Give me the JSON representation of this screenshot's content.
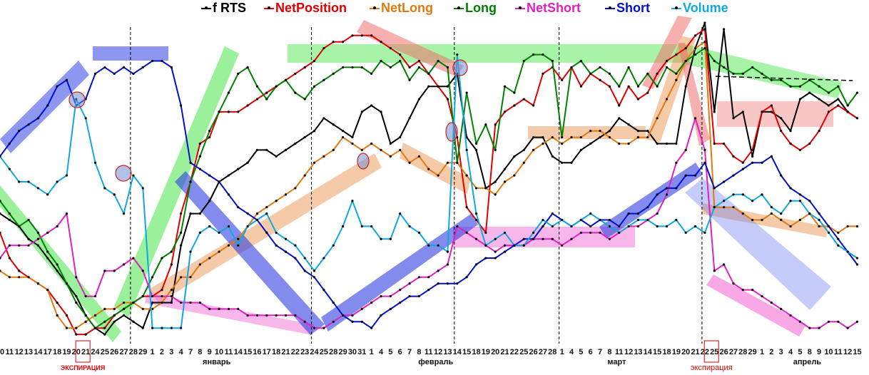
{
  "chart_data": {
    "type": "line",
    "title": "",
    "xlabel": "",
    "ylabel": "",
    "ylim": [
      0,
      100
    ],
    "y_note": "No y-axis shown; values are normalized 0-100 estimates of relative level",
    "grid": false,
    "legend_position": "top",
    "x": [
      "10",
      "11",
      "12",
      "13",
      "14",
      "17",
      "18",
      "19",
      "20",
      "21",
      "24",
      "25",
      "26",
      "27",
      "28",
      "29",
      "1",
      "2",
      "3",
      "4",
      "7",
      "8",
      "9",
      "10",
      "11",
      "14",
      "15",
      "16",
      "17",
      "18",
      "21",
      "22",
      "23",
      "24",
      "25",
      "28",
      "29",
      "30",
      "31",
      "1",
      "4",
      "5",
      "6",
      "7",
      "8",
      "11",
      "12",
      "13",
      "14",
      "15",
      "18",
      "19",
      "20",
      "21",
      "22",
      "25",
      "26",
      "27",
      "28",
      "1",
      "4",
      "5",
      "6",
      "7",
      "8",
      "11",
      "12",
      "13",
      "14",
      "15",
      "18",
      "19",
      "20",
      "21",
      "22",
      "25",
      "26",
      "27",
      "28",
      "29",
      "1",
      "2",
      "3",
      "4",
      "5",
      "8",
      "9",
      "10",
      "11",
      "12",
      "15"
    ],
    "months": [
      {
        "label": "январь",
        "at_index": 22
      },
      {
        "label": "февраль",
        "at_index": 45
      },
      {
        "label": "март",
        "at_index": 64
      },
      {
        "label": "апрель",
        "at_index": 84
      }
    ],
    "expiration_label_1": "ЭКСПИРАЦИЯ",
    "expiration_label_2": "экспирация",
    "expiration_indices": [
      9,
      75
    ],
    "vertical_dashed_indices": [
      14,
      33,
      48,
      59,
      74
    ],
    "series": [
      {
        "name": "f RTS",
        "color": "#000000",
        "values": [
          40,
          38,
          36,
          32,
          30,
          26,
          22,
          18,
          14,
          8,
          4,
          2,
          6,
          8,
          6,
          4,
          12,
          12,
          12,
          30,
          40,
          40,
          44,
          50,
          52,
          54,
          56,
          60,
          60,
          58,
          60,
          62,
          64,
          66,
          70,
          68,
          66,
          64,
          72,
          74,
          72,
          62,
          64,
          70,
          76,
          80,
          80,
          80,
          84,
          64,
          60,
          48,
          50,
          54,
          58,
          60,
          64,
          64,
          58,
          56,
          56,
          60,
          62,
          64,
          66,
          70,
          68,
          66,
          66,
          62,
          62,
          62,
          80,
          92,
          100,
          72,
          98,
          70,
          72,
          58,
          72,
          72,
          70,
          66,
          76,
          78,
          76,
          74,
          76,
          72,
          70
        ]
      },
      {
        "name": "NetPosition",
        "color": "#e00000",
        "values": [
          34,
          26,
          22,
          20,
          18,
          16,
          12,
          8,
          2,
          2,
          4,
          4,
          8,
          10,
          12,
          14,
          14,
          16,
          24,
          40,
          50,
          62,
          64,
          72,
          72,
          72,
          74,
          76,
          78,
          80,
          82,
          84,
          86,
          88,
          92,
          94,
          94,
          96,
          96,
          96,
          94,
          92,
          90,
          86,
          88,
          84,
          80,
          76,
          64,
          42,
          38,
          34,
          68,
          72,
          74,
          76,
          74,
          84,
          86,
          82,
          86,
          80,
          84,
          82,
          80,
          74,
          80,
          76,
          78,
          84,
          88,
          90,
          92,
          96,
          98,
          62,
          62,
          58,
          56,
          60,
          72,
          74,
          66,
          62,
          60,
          62,
          66,
          72,
          74,
          72,
          70
        ]
      },
      {
        "name": "NetLong",
        "color": "#e07a10",
        "values": [
          22,
          20,
          20,
          20,
          18,
          16,
          8,
          4,
          4,
          6,
          8,
          10,
          10,
          12,
          12,
          10,
          10,
          12,
          16,
          20,
          20,
          24,
          26,
          28,
          30,
          32,
          36,
          40,
          42,
          44,
          46,
          48,
          52,
          56,
          58,
          60,
          64,
          62,
          60,
          62,
          60,
          58,
          60,
          56,
          58,
          54,
          52,
          56,
          56,
          52,
          48,
          48,
          46,
          50,
          52,
          56,
          60,
          62,
          64,
          62,
          64,
          64,
          66,
          66,
          64,
          62,
          62,
          64,
          64,
          70,
          76,
          82,
          88,
          92,
          94,
          42,
          42,
          42,
          40,
          38,
          38,
          40,
          38,
          36,
          38,
          40,
          36,
          36,
          34,
          36,
          36
        ]
      },
      {
        "name": "Long",
        "color": "#008000",
        "values": [
          44,
          40,
          36,
          38,
          34,
          28,
          24,
          18,
          12,
          8,
          4,
          6,
          8,
          10,
          12,
          14,
          20,
          26,
          28,
          34,
          50,
          58,
          66,
          72,
          78,
          84,
          86,
          80,
          76,
          80,
          82,
          78,
          76,
          80,
          82,
          84,
          86,
          86,
          86,
          84,
          88,
          86,
          88,
          82,
          86,
          84,
          88,
          86,
          56,
          78,
          62,
          68,
          60,
          80,
          78,
          88,
          90,
          90,
          88,
          64,
          86,
          88,
          84,
          86,
          84,
          80,
          86,
          80,
          84,
          80,
          86,
          84,
          88,
          90,
          92,
          88,
          86,
          84,
          84,
          86,
          84,
          82,
          82,
          80,
          80,
          82,
          80,
          78,
          80,
          74,
          78
        ]
      },
      {
        "name": "NetShort",
        "color": "#e020c0",
        "values": [
          26,
          30,
          30,
          30,
          32,
          34,
          36,
          40,
          20,
          14,
          14,
          22,
          22,
          24,
          26,
          22,
          14,
          14,
          14,
          12,
          12,
          12,
          10,
          10,
          10,
          10,
          8,
          8,
          8,
          8,
          8,
          8,
          6,
          4,
          4,
          6,
          8,
          8,
          10,
          12,
          14,
          14,
          16,
          18,
          20,
          20,
          22,
          24,
          36,
          34,
          32,
          30,
          28,
          30,
          30,
          30,
          32,
          32,
          32,
          30,
          32,
          34,
          34,
          34,
          32,
          34,
          36,
          36,
          38,
          40,
          46,
          56,
          60,
          70,
          60,
          22,
          24,
          18,
          16,
          16,
          14,
          12,
          10,
          8,
          6,
          4,
          4,
          6,
          6,
          4,
          6
        ]
      },
      {
        "name": "Short",
        "color": "#0010d0",
        "values": [
          58,
          62,
          66,
          68,
          70,
          74,
          80,
          82,
          74,
          76,
          84,
          86,
          84,
          86,
          84,
          86,
          88,
          88,
          86,
          74,
          56,
          54,
          52,
          50,
          46,
          42,
          40,
          38,
          34,
          30,
          28,
          26,
          22,
          20,
          16,
          12,
          8,
          6,
          6,
          4,
          8,
          10,
          12,
          14,
          14,
          16,
          18,
          18,
          18,
          20,
          24,
          26,
          26,
          28,
          30,
          32,
          32,
          36,
          40,
          38,
          36,
          38,
          36,
          38,
          38,
          36,
          40,
          40,
          42,
          46,
          48,
          48,
          52,
          52,
          56,
          48,
          50,
          52,
          54,
          56,
          56,
          58,
          52,
          48,
          46,
          44,
          40,
          36,
          32,
          28,
          24
        ]
      },
      {
        "name": "Volume",
        "color": "#10a8e0",
        "values": [
          58,
          54,
          50,
          50,
          48,
          46,
          50,
          52,
          76,
          70,
          56,
          48,
          46,
          40,
          52,
          48,
          4,
          4,
          4,
          4,
          28,
          34,
          36,
          34,
          36,
          30,
          36,
          38,
          40,
          34,
          32,
          30,
          26,
          22,
          26,
          30,
          36,
          44,
          36,
          36,
          32,
          32,
          40,
          36,
          34,
          30,
          30,
          28,
          90,
          60,
          40,
          30,
          32,
          34,
          30,
          30,
          34,
          38,
          36,
          38,
          36,
          38,
          40,
          38,
          36,
          34,
          36,
          38,
          38,
          36,
          36,
          38,
          34,
          36,
          34,
          42,
          44,
          46,
          46,
          44,
          46,
          42,
          40,
          44,
          44,
          40,
          38,
          34,
          30,
          28,
          26
        ]
      }
    ]
  }
}
